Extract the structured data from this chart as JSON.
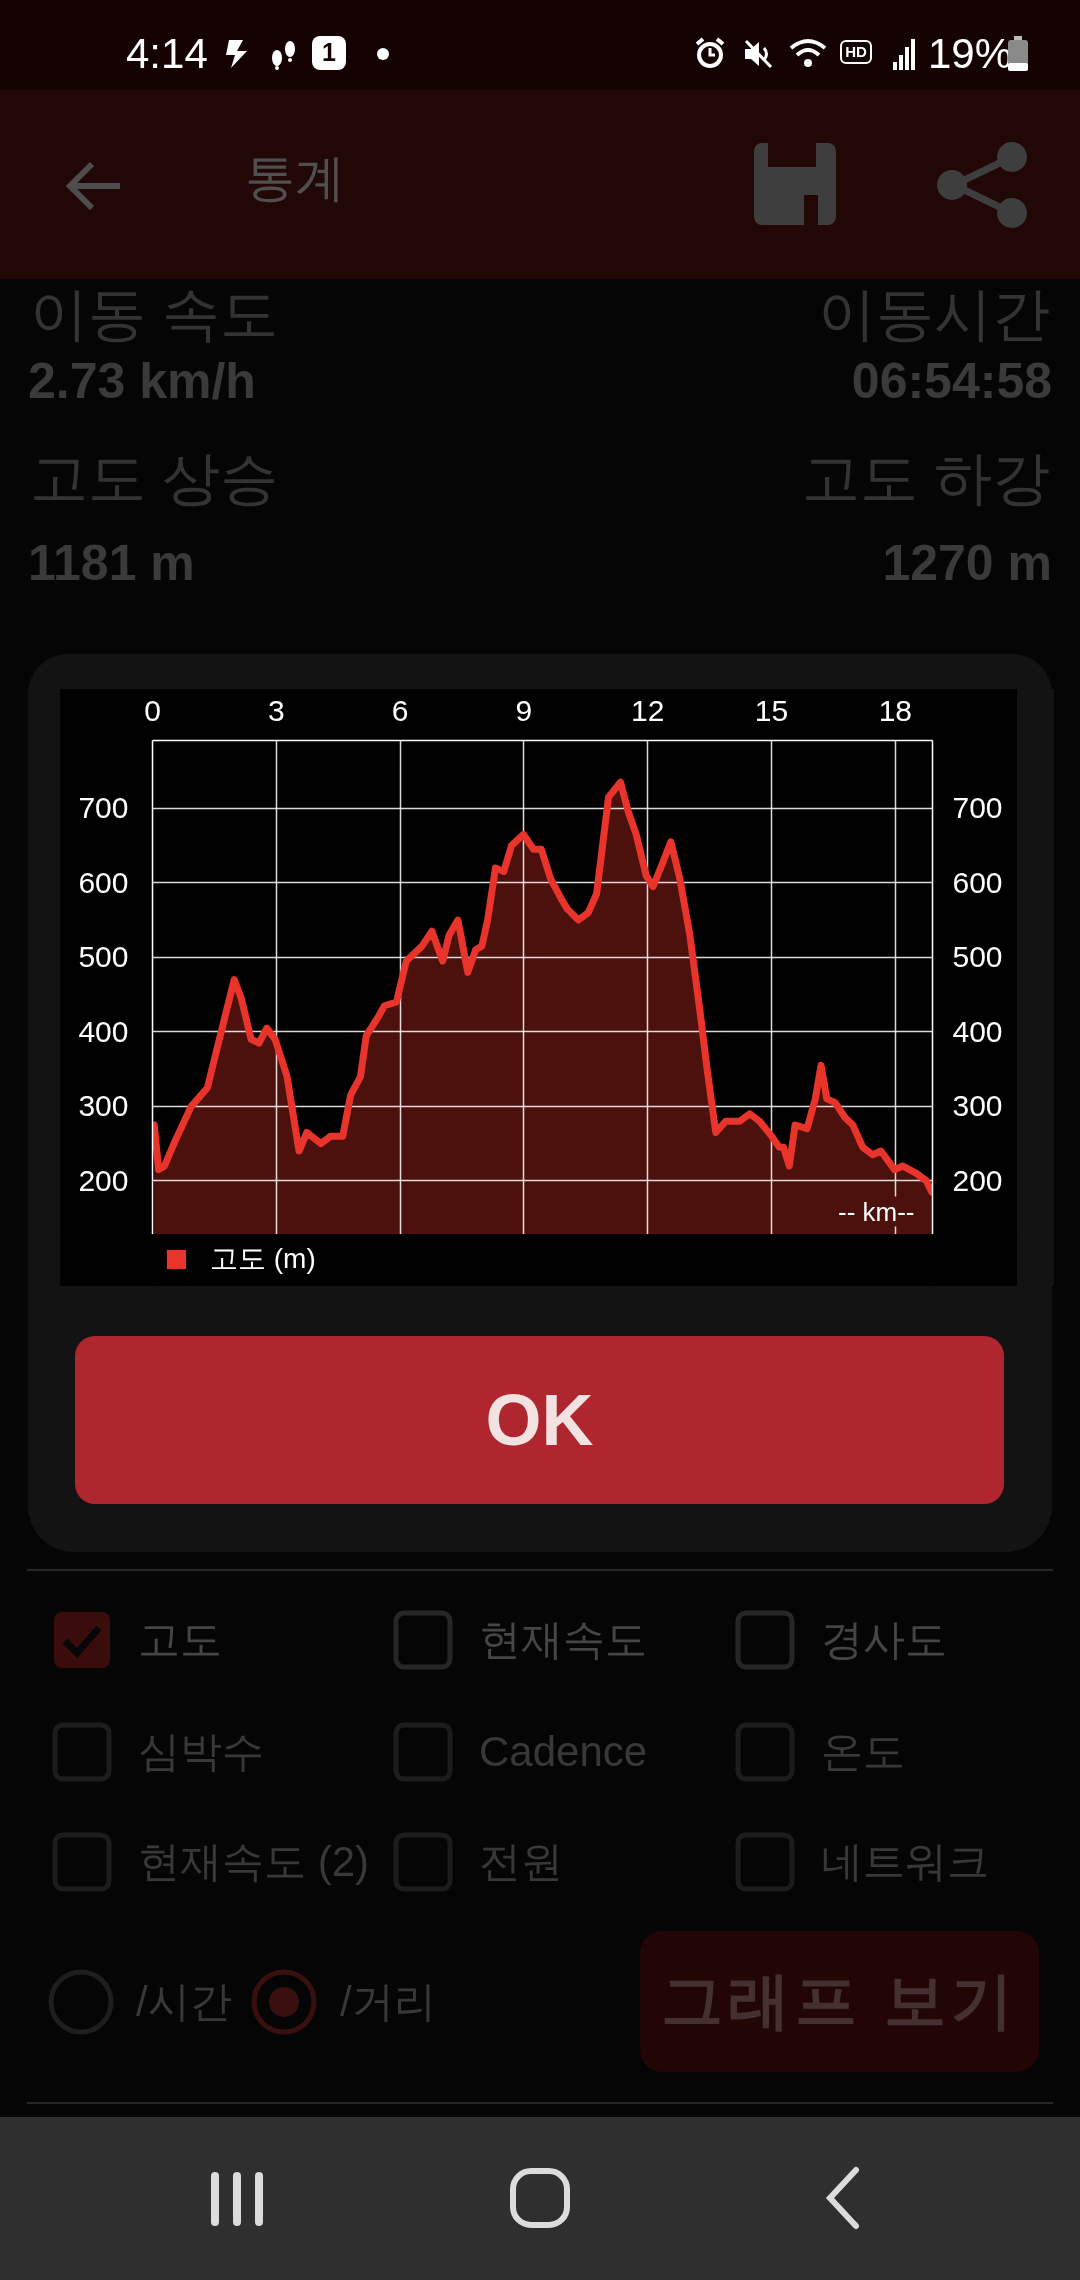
{
  "chart_data": {
    "type": "area",
    "xlabel": "-- km--",
    "x": [
      0.04,
      0.15,
      0.29,
      0.56,
      0.94,
      1.33,
      1.62,
      1.98,
      2.15,
      2.39,
      2.58,
      2.77,
      2.97,
      3.26,
      3.55,
      3.74,
      4.08,
      4.32,
      4.61,
      4.8,
      5.04,
      5.18,
      5.47,
      5.62,
      5.91,
      6.15,
      6.34,
      6.53,
      6.77,
      7.03,
      7.19,
      7.4,
      7.64,
      7.83,
      7.98,
      8.12,
      8.31,
      8.51,
      8.7,
      8.99,
      9.23,
      9.42,
      9.65,
      9.89,
      10.05,
      10.32,
      10.56,
      10.76,
      11.05,
      11.34,
      11.53,
      11.72,
      11.96,
      12.13,
      12.35,
      12.56,
      12.78,
      13.02,
      13.26,
      13.45,
      13.65,
      13.89,
      14.23,
      14.47,
      14.71,
      15.0,
      15.19,
      15.29,
      15.43,
      15.57,
      15.86,
      16.06,
      16.2,
      16.34,
      16.54,
      16.78,
      16.97,
      17.21,
      17.45,
      17.65,
      17.98,
      18.18,
      18.51,
      18.75,
      18.88
    ],
    "series": [
      {
        "name": "고도 (m)",
        "color": "#e8342a",
        "values": [
          275,
          215,
          220,
          255,
          300,
          325,
          390,
          470,
          445,
          390,
          385,
          405,
          390,
          340,
          240,
          265,
          250,
          260,
          260,
          315,
          340,
          395,
          420,
          435,
          440,
          495,
          505,
          515,
          535,
          495,
          530,
          550,
          480,
          510,
          515,
          550,
          620,
          615,
          650,
          665,
          645,
          645,
          605,
          580,
          565,
          550,
          560,
          585,
          715,
          735,
          695,
          665,
          610,
          595,
          625,
          655,
          605,
          530,
          430,
          345,
          265,
          280,
          280,
          290,
          280,
          260,
          245,
          245,
          220,
          275,
          270,
          310,
          355,
          310,
          305,
          285,
          275,
          245,
          235,
          240,
          215,
          220,
          210,
          200,
          185
        ]
      }
    ],
    "xlim": [
      0,
      18.9
    ],
    "xticks": [
      0,
      3,
      6,
      9,
      12,
      15,
      18
    ],
    "ylim": [
      128,
      791
    ],
    "yticks": [
      200,
      300,
      400,
      500,
      600,
      700
    ],
    "y2lim": [
      128,
      791
    ],
    "y2ticks": [
      200,
      300,
      400,
      500,
      600,
      700
    ],
    "grid": true,
    "legend": "bottom left",
    "annotations": [
      "4:14",
      "1",
      "HD",
      "19%",
      "통계",
      "이동 속도",
      "이동시간",
      "2.73 km/h",
      "06:54:58",
      "고도 상승",
      "고도 하강",
      "1181 m",
      "1270 m",
      "OK",
      "고도",
      "현재속도",
      "경사도",
      "심박수",
      "Cadence",
      "온도",
      "현재속도 (2)",
      "전원",
      "네트워크",
      "/시간",
      "/거리",
      "그래프 보기"
    ]
  }
}
